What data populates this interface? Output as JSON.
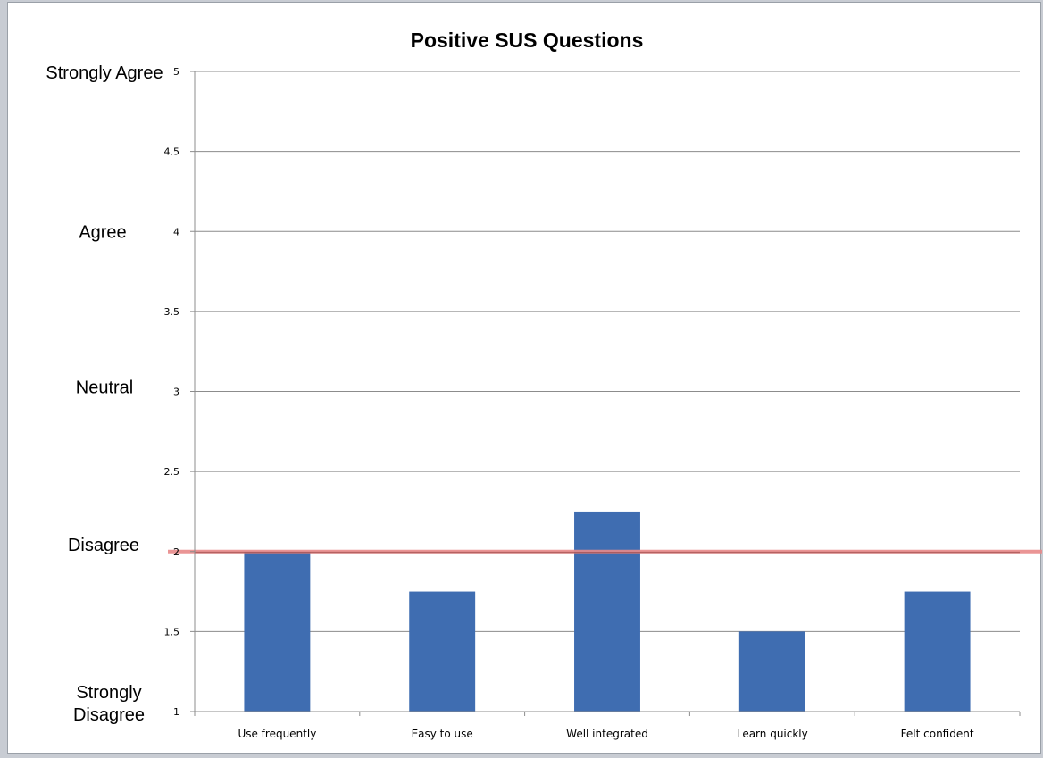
{
  "chart_data": {
    "type": "bar",
    "title": "Positive SUS Questions",
    "categories": [
      "Use frequently",
      "Easy to use",
      "Well integrated",
      "Learn quickly",
      "Felt confident"
    ],
    "values": [
      2.0,
      1.75,
      2.25,
      1.5,
      1.75
    ],
    "ylim": [
      1,
      5
    ],
    "yticks": [
      "1",
      "1.5",
      "2",
      "2.5",
      "3",
      "3.5",
      "4",
      "4.5",
      "5"
    ],
    "grid": true,
    "bar_color": "#3f6db1",
    "reference_line": {
      "value": 2,
      "color": "#e88a8a"
    },
    "scale_labels": [
      {
        "value": 5,
        "lines": [
          "Strongly Agree"
        ]
      },
      {
        "value": 4,
        "lines": [
          "Agree"
        ]
      },
      {
        "value": 3,
        "lines": [
          "Neutral"
        ]
      },
      {
        "value": 2,
        "lines": [
          "Disagree"
        ]
      },
      {
        "value": 1,
        "lines": [
          "Strongly",
          "Disagree"
        ]
      }
    ]
  }
}
